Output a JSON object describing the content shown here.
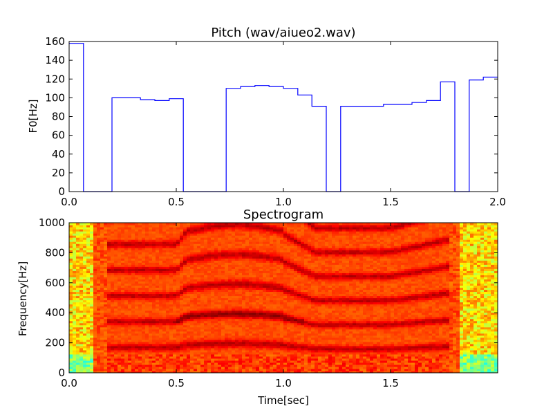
{
  "chart_data": [
    {
      "type": "line",
      "step": "post",
      "title": "Pitch (wav/aiueo2.wav)",
      "xlabel": "",
      "ylabel": "F0[Hz]",
      "xlim": [
        0.0,
        2.0
      ],
      "ylim": [
        0,
        160
      ],
      "xticks": [
        "0.0",
        "0.5",
        "1.0",
        "1.5",
        "2.0"
      ],
      "yticks": [
        "0",
        "20",
        "40",
        "60",
        "80",
        "100",
        "120",
        "140",
        "160"
      ],
      "grid": false,
      "line_color": "#0000ff",
      "x": [
        0.0,
        0.067,
        0.2,
        0.267,
        0.333,
        0.4,
        0.467,
        0.533,
        0.733,
        0.8,
        0.867,
        0.933,
        1.0,
        1.067,
        1.133,
        1.2,
        1.267,
        1.333,
        1.4,
        1.467,
        1.533,
        1.6,
        1.667,
        1.733,
        1.8,
        1.867,
        1.933
      ],
      "y": [
        158,
        0,
        100,
        100,
        98,
        97,
        99,
        0,
        110,
        112,
        113,
        112,
        110,
        103,
        91,
        0,
        91,
        91,
        91,
        93,
        93,
        95,
        97,
        117,
        0,
        119,
        122
      ],
      "x_end": 2.0
    },
    {
      "type": "heatmap",
      "title": "Spectrogram",
      "xlabel": "Time[sec]",
      "ylabel": "Frequency[Hz]",
      "xlim": [
        0.0,
        2.0
      ],
      "ylim": [
        0,
        1000
      ],
      "xticks": [
        "0.0",
        "0.5",
        "1.0",
        "1.5"
      ],
      "yticks": [
        "0",
        "200",
        "400",
        "600",
        "800",
        "1000"
      ],
      "colormap": "jet",
      "voiced_start": 0.17,
      "voiced_end": 1.77,
      "harmonic_spacing_hz": 100
    }
  ]
}
